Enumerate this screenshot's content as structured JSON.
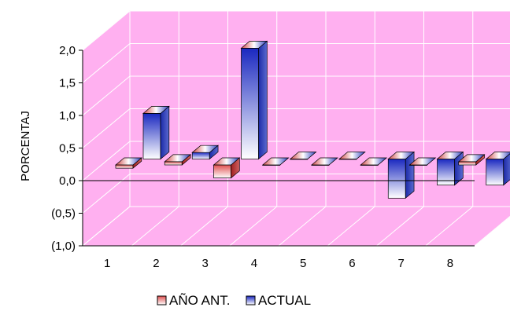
{
  "chart_data": {
    "type": "bar",
    "style": "3d-clustered-column",
    "categories": [
      "1",
      "2",
      "3",
      "4",
      "5",
      "6",
      "7",
      "8"
    ],
    "series": [
      {
        "name": "AÑO ANT.",
        "values": [
          -0.05,
          0.05,
          -0.2,
          0.0,
          0.0,
          0.0,
          0.0,
          0.05
        ],
        "color": "#e05050"
      },
      {
        "name": "ACTUAL",
        "values": [
          0.7,
          0.1,
          1.7,
          0.0,
          0.0,
          -0.6,
          -0.4,
          -0.4
        ],
        "color": "#2030c8"
      }
    ],
    "ylabel": "PORCENTAJ",
    "yticks": [
      "2,0",
      "1,5",
      "1,0",
      "0,5",
      "0,0",
      "(0,5)",
      "(1,0)"
    ],
    "ylim": [
      -1.0,
      2.0
    ],
    "grid": true,
    "wall_color": "#ffb0f0",
    "legend_position": "bottom"
  }
}
